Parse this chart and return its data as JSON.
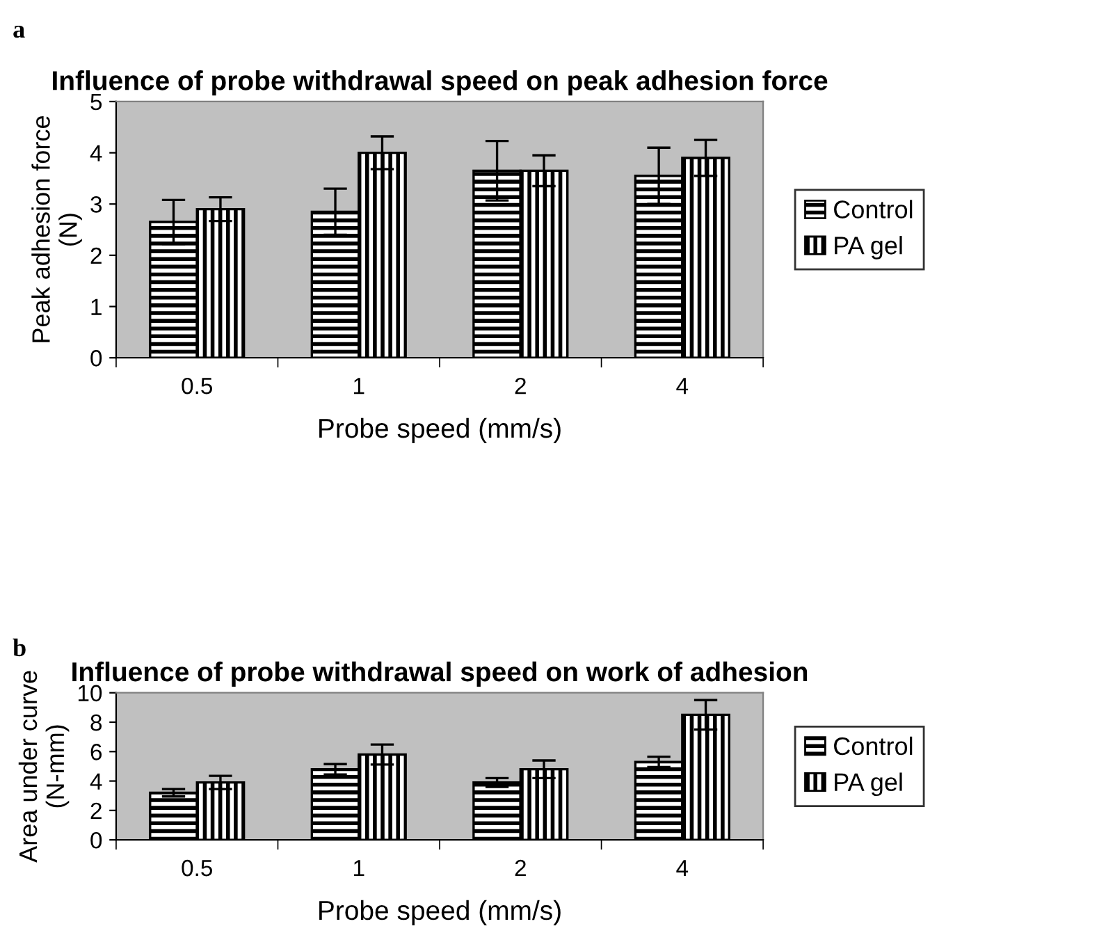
{
  "chart_data": [
    {
      "type": "bar",
      "title": "Influence of probe withdrawal speed on peak adhesion force",
      "xlabel": "Probe speed (mm/s)",
      "ylabel": "Peak adhesion force\n(N)",
      "annotations": [
        "a"
      ],
      "categories": [
        "0.5",
        "1",
        "2",
        "4"
      ],
      "ylim": [
        0,
        5
      ],
      "yticks": [
        0,
        1,
        2,
        3,
        4,
        5
      ],
      "grid": false,
      "legend": "right",
      "series": [
        {
          "name": "Control",
          "color": "#000000",
          "values": [
            2.65,
            2.85,
            3.65,
            3.55
          ],
          "errors": [
            0.43,
            0.45,
            0.58,
            0.55
          ]
        },
        {
          "name": "PA gel",
          "color": "#000000",
          "values": [
            2.9,
            4.0,
            3.65,
            3.9
          ],
          "errors": [
            0.23,
            0.32,
            0.3,
            0.35
          ]
        }
      ]
    },
    {
      "type": "bar",
      "title": "Influence of probe withdrawal speed on work of adhesion",
      "xlabel": "Probe speed (mm/s)",
      "ylabel": "Area under curve\n(N-mm)",
      "annotations": [
        "b"
      ],
      "categories": [
        "0.5",
        "1",
        "2",
        "4"
      ],
      "ylim": [
        0,
        10
      ],
      "yticks": [
        0,
        2,
        4,
        6,
        8,
        10
      ],
      "grid": false,
      "legend": "right",
      "series": [
        {
          "name": "Control",
          "color": "#000000",
          "values": [
            3.2,
            4.8,
            3.9,
            5.3
          ],
          "errors": [
            0.25,
            0.35,
            0.3,
            0.35
          ]
        },
        {
          "name": "PA gel",
          "color": "#000000",
          "values": [
            3.9,
            5.8,
            4.8,
            8.5
          ],
          "errors": [
            0.45,
            0.68,
            0.6,
            1.0
          ]
        }
      ]
    }
  ]
}
